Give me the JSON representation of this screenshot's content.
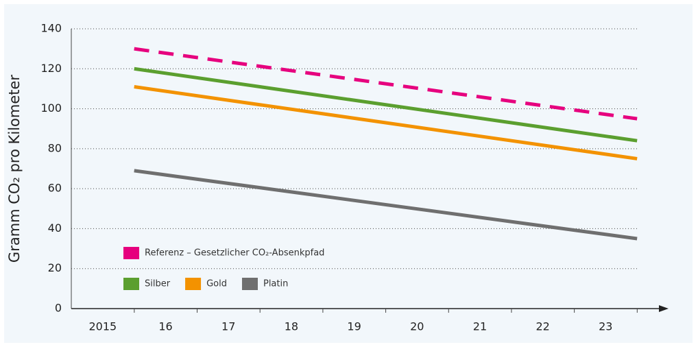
{
  "chart_data": {
    "type": "line",
    "y_label": "Gramm CO₂ pro Kilometer",
    "x": [
      2015.5,
      2023.5
    ],
    "series": [
      {
        "name": "Referenz – Gesetzlicher CO₂-Absenkpfad",
        "color": "#e6007e",
        "dashed": true,
        "values": [
          130,
          95
        ]
      },
      {
        "name": "Silber",
        "color": "#5b9f2f",
        "values": [
          120,
          84
        ]
      },
      {
        "name": "Gold",
        "color": "#f39200",
        "values": [
          111,
          75
        ]
      },
      {
        "name": "Platin",
        "color": "#6f6f6f",
        "values": [
          69,
          35
        ]
      }
    ],
    "xlim": [
      2014.5,
      2024
    ],
    "xticks": [
      2015,
      {
        "value": 2016,
        "label": "16"
      },
      {
        "value": 2017,
        "label": "17"
      },
      {
        "value": 2018,
        "label": "18"
      },
      {
        "value": 2019,
        "label": "19"
      },
      {
        "value": 2020,
        "label": "20"
      },
      {
        "value": 2021,
        "label": "21"
      },
      {
        "value": 2022,
        "label": "22"
      },
      {
        "value": 2023,
        "label": "23"
      }
    ],
    "ylim": [
      0,
      140
    ],
    "yticks": [
      0,
      20,
      40,
      60,
      80,
      100,
      120,
      140
    ],
    "grid": true
  }
}
